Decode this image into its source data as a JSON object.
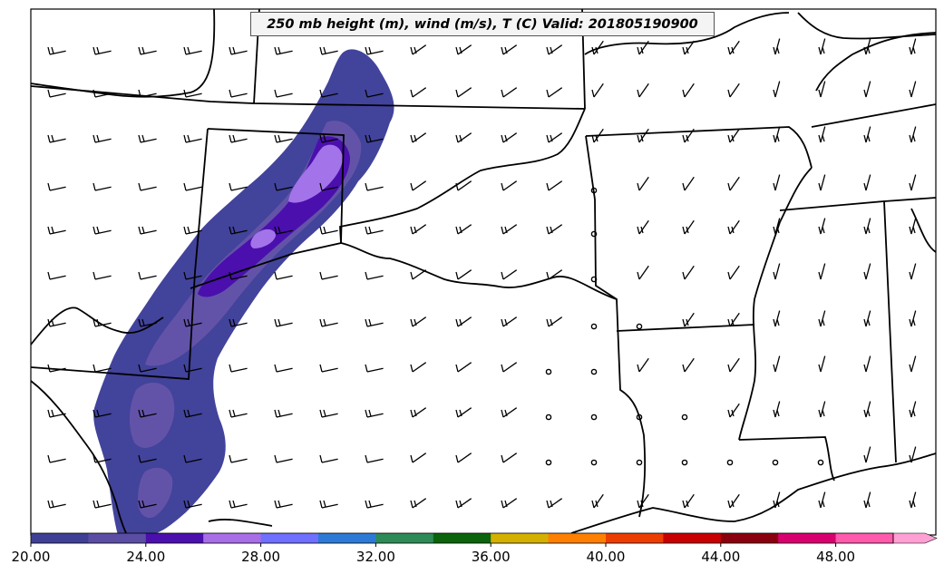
{
  "title": "250 mb height (m), wind (m/s), T (C) Valid: 201805190900",
  "colorbar": {
    "colors": [
      "#3f3f96",
      "#5a4da3",
      "#4b0fae",
      "#a86ee8",
      "#7070ff",
      "#2d7ad6",
      "#2e8b57",
      "#0b640b",
      "#d4b000",
      "#ff8000",
      "#ec3e00",
      "#c80000",
      "#8b000f",
      "#d8006f",
      "#ff5aac",
      "#ffa0d5"
    ],
    "tick_labels": [
      "20.00",
      "24.00",
      "28.00",
      "32.00",
      "36.00",
      "40.00",
      "44.00",
      "48.00"
    ]
  },
  "shading_colors": {
    "outer": "#42439b",
    "mid": "#6353a8",
    "inner": "#4b0fae",
    "core": "#a373ea"
  }
}
